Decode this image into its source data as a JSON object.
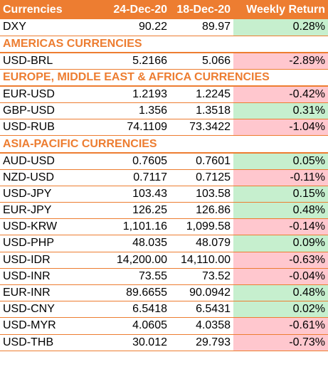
{
  "columns": [
    "Currencies",
    "24-Dec-20",
    "18-Dec-20",
    "Weekly Return"
  ],
  "colors": {
    "header_bg": "#ed7d31",
    "positive_bg": "#c6efce",
    "negative_bg": "#ffc7ce"
  },
  "rows": [
    {
      "type": "data",
      "name": "DXY",
      "v1": "90.22",
      "v2": "89.97",
      "ret": "0.28%",
      "sign": "pos"
    },
    {
      "type": "section",
      "label": "AMERICAS CURRENCIES"
    },
    {
      "type": "data",
      "name": "USD-BRL",
      "v1": "5.2166",
      "v2": "5.066",
      "ret": "-2.89%",
      "sign": "neg"
    },
    {
      "type": "section",
      "label": "EUROPE, MIDDLE EAST & AFRICA CURRENCIES"
    },
    {
      "type": "data",
      "name": "EUR-USD",
      "v1": "1.2193",
      "v2": "1.2245",
      "ret": "-0.42%",
      "sign": "neg"
    },
    {
      "type": "data",
      "name": "GBP-USD",
      "v1": "1.356",
      "v2": "1.3518",
      "ret": "0.31%",
      "sign": "pos"
    },
    {
      "type": "data",
      "name": "USD-RUB",
      "v1": "74.1109",
      "v2": "73.3422",
      "ret": "-1.04%",
      "sign": "neg"
    },
    {
      "type": "section",
      "label": "ASIA-PACIFIC CURRENCIES"
    },
    {
      "type": "data",
      "name": "AUD-USD",
      "v1": "0.7605",
      "v2": "0.7601",
      "ret": "0.05%",
      "sign": "pos"
    },
    {
      "type": "data",
      "name": "NZD-USD",
      "v1": "0.7117",
      "v2": "0.7125",
      "ret": "-0.11%",
      "sign": "neg"
    },
    {
      "type": "data",
      "name": "USD-JPY",
      "v1": "103.43",
      "v2": "103.58",
      "ret": "0.15%",
      "sign": "pos"
    },
    {
      "type": "data",
      "name": "EUR-JPY",
      "v1": "126.25",
      "v2": "126.86",
      "ret": "0.48%",
      "sign": "pos"
    },
    {
      "type": "data",
      "name": "USD-KRW",
      "v1": "1,101.16",
      "v2": "1,099.58",
      "ret": "-0.14%",
      "sign": "neg"
    },
    {
      "type": "data",
      "name": "USD-PHP",
      "v1": "48.035",
      "v2": "48.079",
      "ret": "0.09%",
      "sign": "pos"
    },
    {
      "type": "data",
      "name": "USD-IDR",
      "v1": "14,200.00",
      "v2": "14,110.00",
      "ret": "-0.63%",
      "sign": "neg"
    },
    {
      "type": "data",
      "name": "USD-INR",
      "v1": "73.55",
      "v2": "73.52",
      "ret": "-0.04%",
      "sign": "neg"
    },
    {
      "type": "data",
      "name": "EUR-INR",
      "v1": "89.6655",
      "v2": "90.0942",
      "ret": "0.48%",
      "sign": "pos"
    },
    {
      "type": "data",
      "name": "USD-CNY",
      "v1": "6.5418",
      "v2": "6.5431",
      "ret": "0.02%",
      "sign": "pos"
    },
    {
      "type": "data",
      "name": "USD-MYR",
      "v1": "4.0605",
      "v2": "4.0358",
      "ret": "-0.61%",
      "sign": "neg"
    },
    {
      "type": "data",
      "name": "USD-THB",
      "v1": "30.012",
      "v2": "29.793",
      "ret": "-0.73%",
      "sign": "neg"
    }
  ]
}
